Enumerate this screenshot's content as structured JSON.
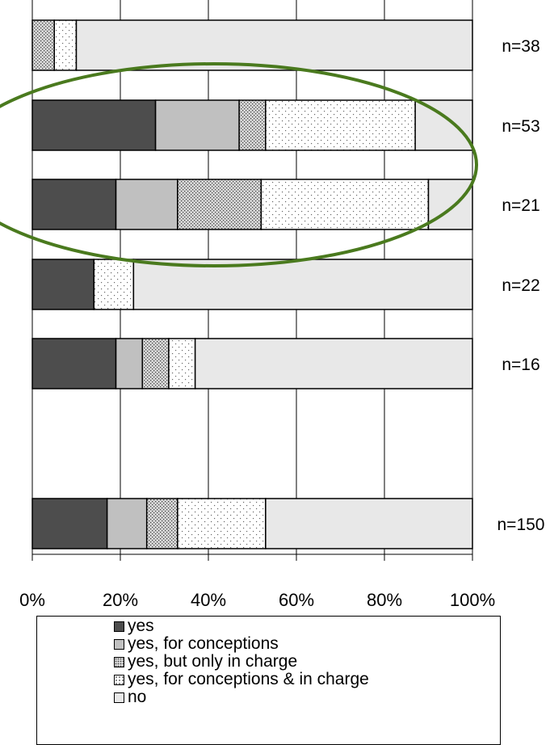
{
  "chart_data": {
    "type": "bar",
    "orientation": "horizontal",
    "stacked": "percent",
    "xlim": [
      0,
      100
    ],
    "x_ticks": [
      "0%",
      "20%",
      "40%",
      "60%",
      "80%",
      "100%"
    ],
    "grid": "vertical",
    "series": [
      {
        "name": "yes",
        "color": "#4d4d4d",
        "pattern": "solid",
        "values": [
          0,
          28,
          19,
          14,
          19,
          17
        ]
      },
      {
        "name": "yes, for conceptions",
        "color": "#c0c0c0",
        "pattern": "solid",
        "values": [
          0,
          19,
          14,
          0,
          6,
          9
        ]
      },
      {
        "name": "yes, but only in charge",
        "color": "#d0d0d0",
        "pattern": "dense-dots",
        "values": [
          5,
          6,
          19,
          0,
          6,
          7
        ]
      },
      {
        "name": "yes, for conceptions & in charge",
        "color": "#ffffff",
        "pattern": "sparse-dots",
        "values": [
          5,
          34,
          38,
          9,
          6,
          20
        ]
      },
      {
        "name": "no",
        "color": "#e8e8e8",
        "pattern": "solid",
        "values": [
          90,
          13,
          10,
          77,
          63,
          47
        ]
      }
    ],
    "rows": [
      {
        "n_label": "n=38"
      },
      {
        "n_label": "n=53"
      },
      {
        "n_label": "n=21"
      },
      {
        "n_label": "n=22"
      },
      {
        "n_label": "n=16"
      },
      {
        "n_label": "n=150"
      }
    ],
    "highlight": {
      "shape": "ellipse",
      "color": "#4a7a1e",
      "rows": [
        1,
        2
      ]
    },
    "legend": {
      "position": "bottom"
    }
  }
}
